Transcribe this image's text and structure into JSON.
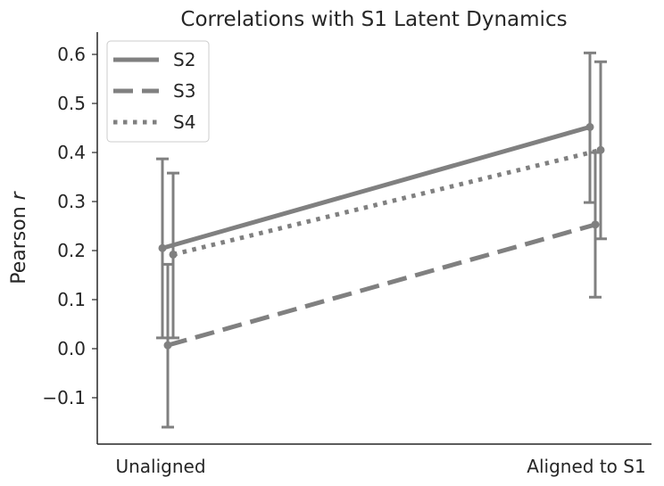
{
  "chart_data": {
    "type": "line",
    "title": "Correlations with S1 Latent Dynamics",
    "xlabel": "",
    "ylabel": "Pearson",
    "ylabel_italic": "r",
    "categories": [
      "Unaligned",
      "Aligned to S1"
    ],
    "ylim": [
      -0.2,
      0.64
    ],
    "yticks": [
      -0.1,
      0.0,
      0.1,
      0.2,
      0.3,
      0.4,
      0.5,
      0.6
    ],
    "ytick_labels": [
      "−0.1",
      "0.0",
      "0.1",
      "0.2",
      "0.3",
      "0.4",
      "0.5",
      "0.6"
    ],
    "grid": false,
    "legend_position": "top-left",
    "color": "#808080",
    "series": [
      {
        "name": "S2",
        "style": "solid",
        "values": [
          0.205,
          0.452
        ],
        "err_low": [
          0.022,
          0.298
        ],
        "err_high": [
          0.387,
          0.603
        ]
      },
      {
        "name": "S3",
        "style": "dashed",
        "values": [
          0.007,
          0.253
        ],
        "err_low": [
          -0.16,
          0.105
        ],
        "err_high": [
          0.172,
          0.4
        ]
      },
      {
        "name": "S4",
        "style": "dotted",
        "values": [
          0.192,
          0.405
        ],
        "err_low": [
          0.022,
          0.224
        ],
        "err_high": [
          0.358,
          0.585
        ]
      }
    ]
  }
}
